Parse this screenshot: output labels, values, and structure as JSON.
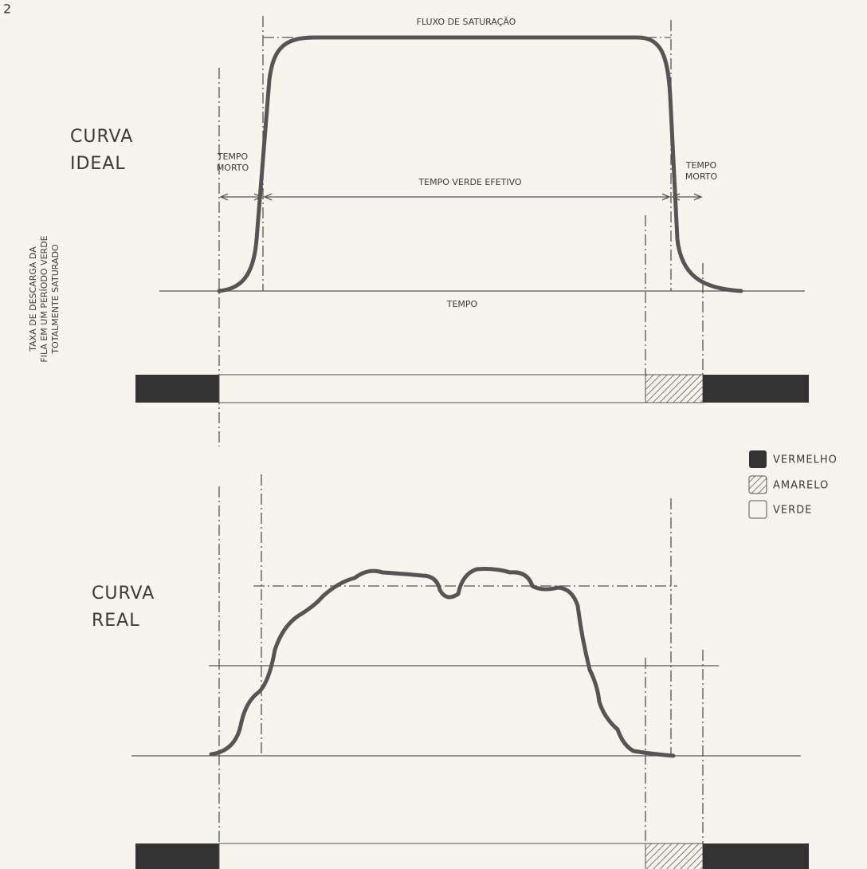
{
  "page_number": "2",
  "y_axis_label": [
    "TAXA DE DESCARGA DA",
    "FILA EM UM PERÍODO VERDE",
    "TOTALMENTE SATURADO"
  ],
  "ideal": {
    "title": [
      "CURVA",
      "IDEAL"
    ],
    "saturation_flow": "FLUXO DE SATURAÇÃO",
    "dead_time_left": [
      "TEMPO",
      "MORTO"
    ],
    "effective_green": "TEMPO VERDE EFETIVO",
    "dead_time_right": [
      "TEMPO",
      "MORTO"
    ],
    "x_axis": "TEMPO"
  },
  "real": {
    "title": [
      "CURVA",
      "REAL"
    ]
  },
  "legend": [
    "VERMELHO",
    "AMARELO",
    "VERDE"
  ]
}
